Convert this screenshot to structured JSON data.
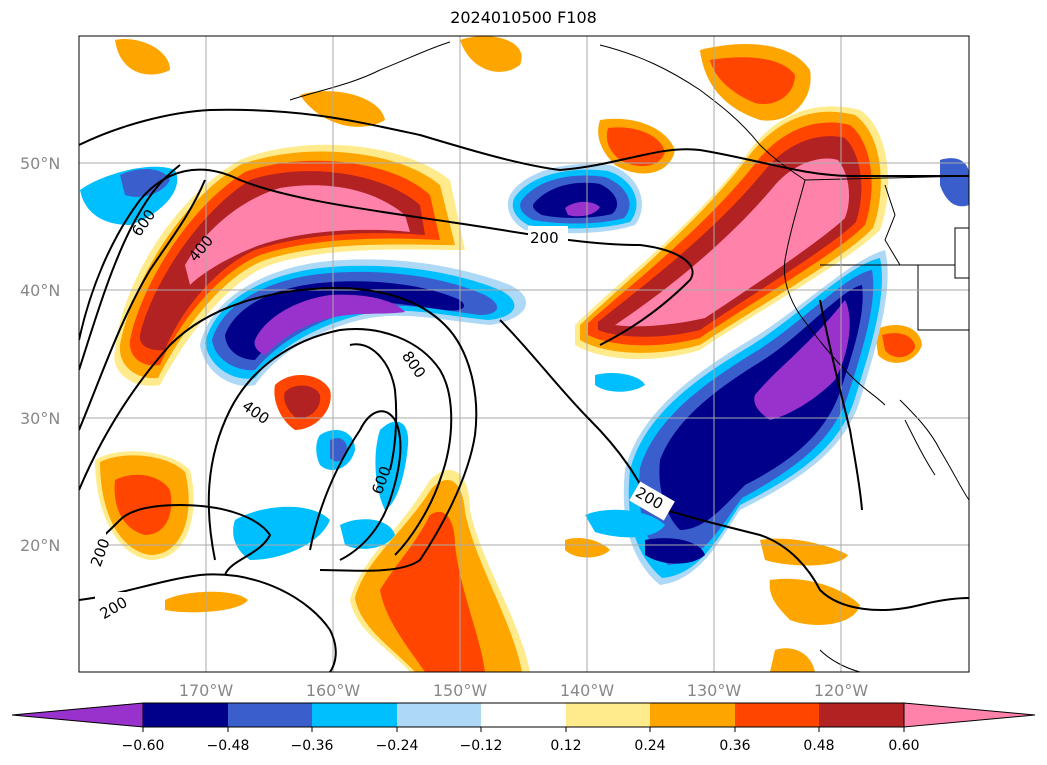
{
  "title": "2024010500 F108",
  "lat_ticks": [
    "50°N",
    "40°N",
    "30°N",
    "20°N"
  ],
  "lon_ticks": [
    "170°W",
    "160°W",
    "150°W",
    "140°W",
    "130°W",
    "120°W"
  ],
  "colorbar": {
    "levels": [
      "−0.60",
      "−0.48",
      "−0.36",
      "−0.24",
      "−0.12",
      "0.12",
      "0.24",
      "0.36",
      "0.48",
      "0.60"
    ],
    "colors": [
      "#9932cc",
      "#00008b",
      "#3a5fcd",
      "#00bfff",
      "#add8f6",
      "#ffffff",
      "#ffeb8c",
      "#ffa500",
      "#ff4500",
      "#b22222",
      "#ff82ab"
    ]
  },
  "contour_labels": [
    "200",
    "200",
    "200",
    "200",
    "400",
    "400",
    "600",
    "600",
    "800"
  ]
}
